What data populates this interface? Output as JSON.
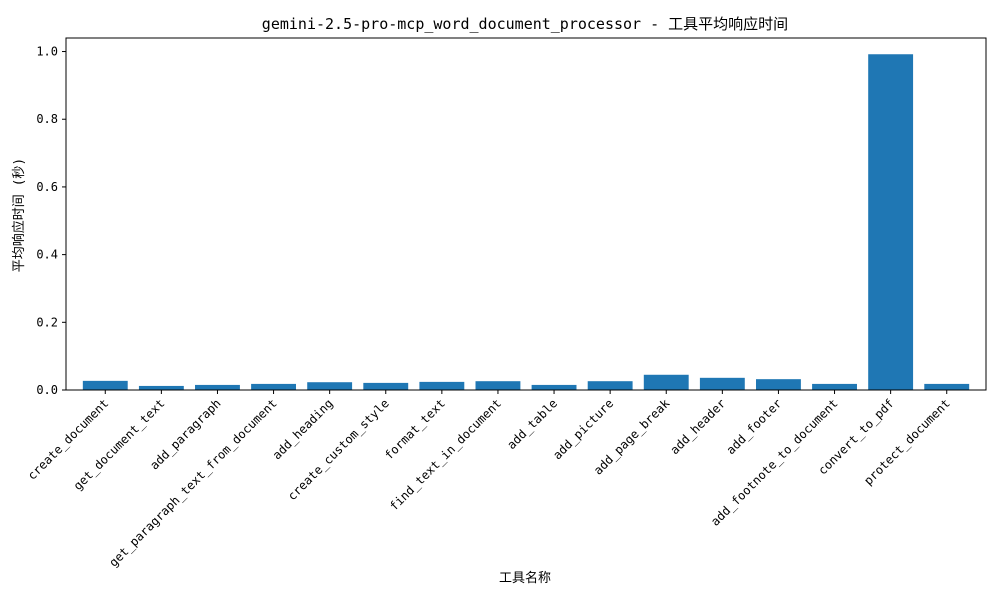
{
  "chart_data": {
    "type": "bar",
    "title": "gemini-2.5-pro-mcp_word_document_processor - 工具平均响应时间",
    "xlabel": "工具名称",
    "ylabel": "平均响应时间 (秒)",
    "ylim": [
      0,
      1.04
    ],
    "yticks": [
      "0.0",
      "0.2",
      "0.4",
      "0.6",
      "0.8",
      "1.0"
    ],
    "ytick_values": [
      0,
      0.2,
      0.4,
      0.6,
      0.8,
      1.0
    ],
    "grid": false,
    "bar_color": "#1f77b4",
    "categories": [
      "create_document",
      "get_document_text",
      "add_paragraph",
      "get_paragraph_text_from_document",
      "add_heading",
      "create_custom_style",
      "format_text",
      "find_text_in_document",
      "add_table",
      "add_picture",
      "add_page_break",
      "add_header",
      "add_footer",
      "add_footnote_to_document",
      "convert_to_pdf",
      "protect_document"
    ],
    "values": [
      0.027,
      0.012,
      0.015,
      0.018,
      0.023,
      0.021,
      0.024,
      0.026,
      0.015,
      0.026,
      0.045,
      0.036,
      0.032,
      0.018,
      0.992,
      0.018
    ]
  }
}
